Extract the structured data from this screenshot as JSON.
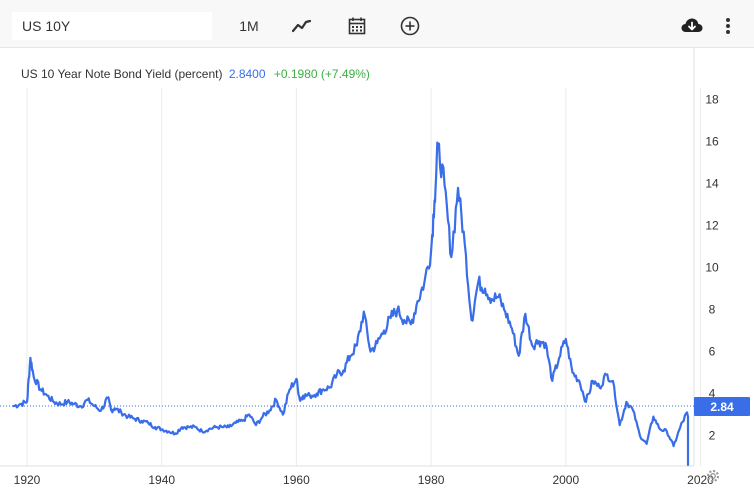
{
  "toolbar": {
    "symbol_value": "US 10Y",
    "range_label": "1M",
    "icons": [
      "line-chart-icon",
      "calendar-icon",
      "add-circle-icon",
      "download-icon",
      "more-vert-icon"
    ]
  },
  "legend": {
    "series_name": "US 10 Year Note Bond Yield (percent)",
    "value": "2.8400",
    "change": "+0.1980 (+7.49%)"
  },
  "price_tag": "2.84",
  "colors": {
    "line": "#3a6ee8",
    "change_positive": "#3bb143",
    "tag_bg": "#3a6ee8"
  },
  "chart_data": {
    "type": "line",
    "x_ticks": [
      "1920",
      "1940",
      "1960",
      "1980",
      "2000",
      "2020"
    ],
    "y_ticks": [
      "2",
      "4",
      "6",
      "8",
      "10",
      "12",
      "14",
      "16",
      "18"
    ],
    "xlim": [
      1918,
      2022.5
    ],
    "ylim": [
      0.5,
      19
    ],
    "grid": "vertical",
    "series": [
      {
        "values": [
          [
            1918.0,
            3.4
          ],
          [
            1919.0,
            3.5
          ],
          [
            1920.0,
            3.6
          ],
          [
            1920.5,
            5.7
          ],
          [
            1921.0,
            4.8
          ],
          [
            1922.0,
            4.2
          ],
          [
            1923.0,
            3.9
          ],
          [
            1924.0,
            3.6
          ],
          [
            1925.0,
            3.5
          ],
          [
            1926.0,
            3.6
          ],
          [
            1927.0,
            3.5
          ],
          [
            1928.0,
            3.4
          ],
          [
            1929.0,
            3.7
          ],
          [
            1930.0,
            3.4
          ],
          [
            1931.0,
            3.2
          ],
          [
            1932.0,
            3.8
          ],
          [
            1932.5,
            3.2
          ],
          [
            1933.0,
            3.3
          ],
          [
            1934.0,
            3.1
          ],
          [
            1935.0,
            2.9
          ],
          [
            1936.0,
            2.8
          ],
          [
            1937.0,
            2.7
          ],
          [
            1938.0,
            2.6
          ],
          [
            1939.0,
            2.4
          ],
          [
            1940.0,
            2.3
          ],
          [
            1941.0,
            2.2
          ],
          [
            1942.0,
            2.1
          ],
          [
            1943.0,
            2.4
          ],
          [
            1944.0,
            2.4
          ],
          [
            1945.0,
            2.4
          ],
          [
            1946.0,
            2.2
          ],
          [
            1947.0,
            2.3
          ],
          [
            1948.0,
            2.4
          ],
          [
            1949.0,
            2.4
          ],
          [
            1950.0,
            2.4
          ],
          [
            1951.0,
            2.6
          ],
          [
            1952.0,
            2.7
          ],
          [
            1953.0,
            3.0
          ],
          [
            1954.0,
            2.5
          ],
          [
            1955.0,
            2.9
          ],
          [
            1956.0,
            3.2
          ],
          [
            1957.0,
            3.7
          ],
          [
            1958.0,
            3.0
          ],
          [
            1959.0,
            4.2
          ],
          [
            1960.0,
            4.7
          ],
          [
            1960.5,
            3.7
          ],
          [
            1961.0,
            3.9
          ],
          [
            1962.0,
            3.9
          ],
          [
            1963.0,
            4.0
          ],
          [
            1964.0,
            4.2
          ],
          [
            1965.0,
            4.3
          ],
          [
            1966.0,
            4.9
          ],
          [
            1967.0,
            5.1
          ],
          [
            1968.0,
            5.8
          ],
          [
            1969.0,
            6.3
          ],
          [
            1970.0,
            7.9
          ],
          [
            1971.0,
            6.0
          ],
          [
            1972.0,
            6.4
          ],
          [
            1973.0,
            7.0
          ],
          [
            1974.0,
            7.6
          ],
          [
            1975.0,
            8.0
          ],
          [
            1976.0,
            7.5
          ],
          [
            1977.0,
            7.3
          ],
          [
            1978.0,
            8.4
          ],
          [
            1979.0,
            9.3
          ],
          [
            1980.0,
            10.8
          ],
          [
            1980.5,
            13.2
          ],
          [
            1981.0,
            15.8
          ],
          [
            1982.0,
            13.9
          ],
          [
            1983.0,
            10.5
          ],
          [
            1984.0,
            13.8
          ],
          [
            1985.0,
            11.1
          ],
          [
            1986.0,
            7.5
          ],
          [
            1987.0,
            9.3
          ],
          [
            1988.0,
            9.0
          ],
          [
            1989.0,
            8.5
          ],
          [
            1990.0,
            8.6
          ],
          [
            1991.0,
            7.9
          ],
          [
            1992.0,
            7.1
          ],
          [
            1993.0,
            5.8
          ],
          [
            1994.0,
            7.8
          ],
          [
            1995.0,
            6.3
          ],
          [
            1996.0,
            6.5
          ],
          [
            1997.0,
            6.4
          ],
          [
            1998.0,
            4.6
          ],
          [
            1999.0,
            5.7
          ],
          [
            2000.0,
            6.6
          ],
          [
            2001.0,
            5.0
          ],
          [
            2002.0,
            4.6
          ],
          [
            2003.0,
            3.6
          ],
          [
            2004.0,
            4.6
          ],
          [
            2005.0,
            4.3
          ],
          [
            2006.0,
            4.9
          ],
          [
            2007.0,
            4.6
          ],
          [
            2008.0,
            2.5
          ],
          [
            2009.0,
            3.6
          ],
          [
            2010.0,
            3.2
          ],
          [
            2011.0,
            2.0
          ],
          [
            2012.0,
            1.6
          ],
          [
            2013.0,
            2.9
          ],
          [
            2014.0,
            2.3
          ],
          [
            2015.0,
            2.2
          ],
          [
            2016.0,
            1.5
          ],
          [
            2017.0,
            2.4
          ],
          [
            2018.0,
            3.1
          ],
          [
            2019.0,
            1.6
          ],
          [
            2020.0,
            0.6
          ],
          [
            2021.0,
            1.5
          ],
          [
            2022.0,
            2.84
          ]
        ]
      }
    ]
  }
}
